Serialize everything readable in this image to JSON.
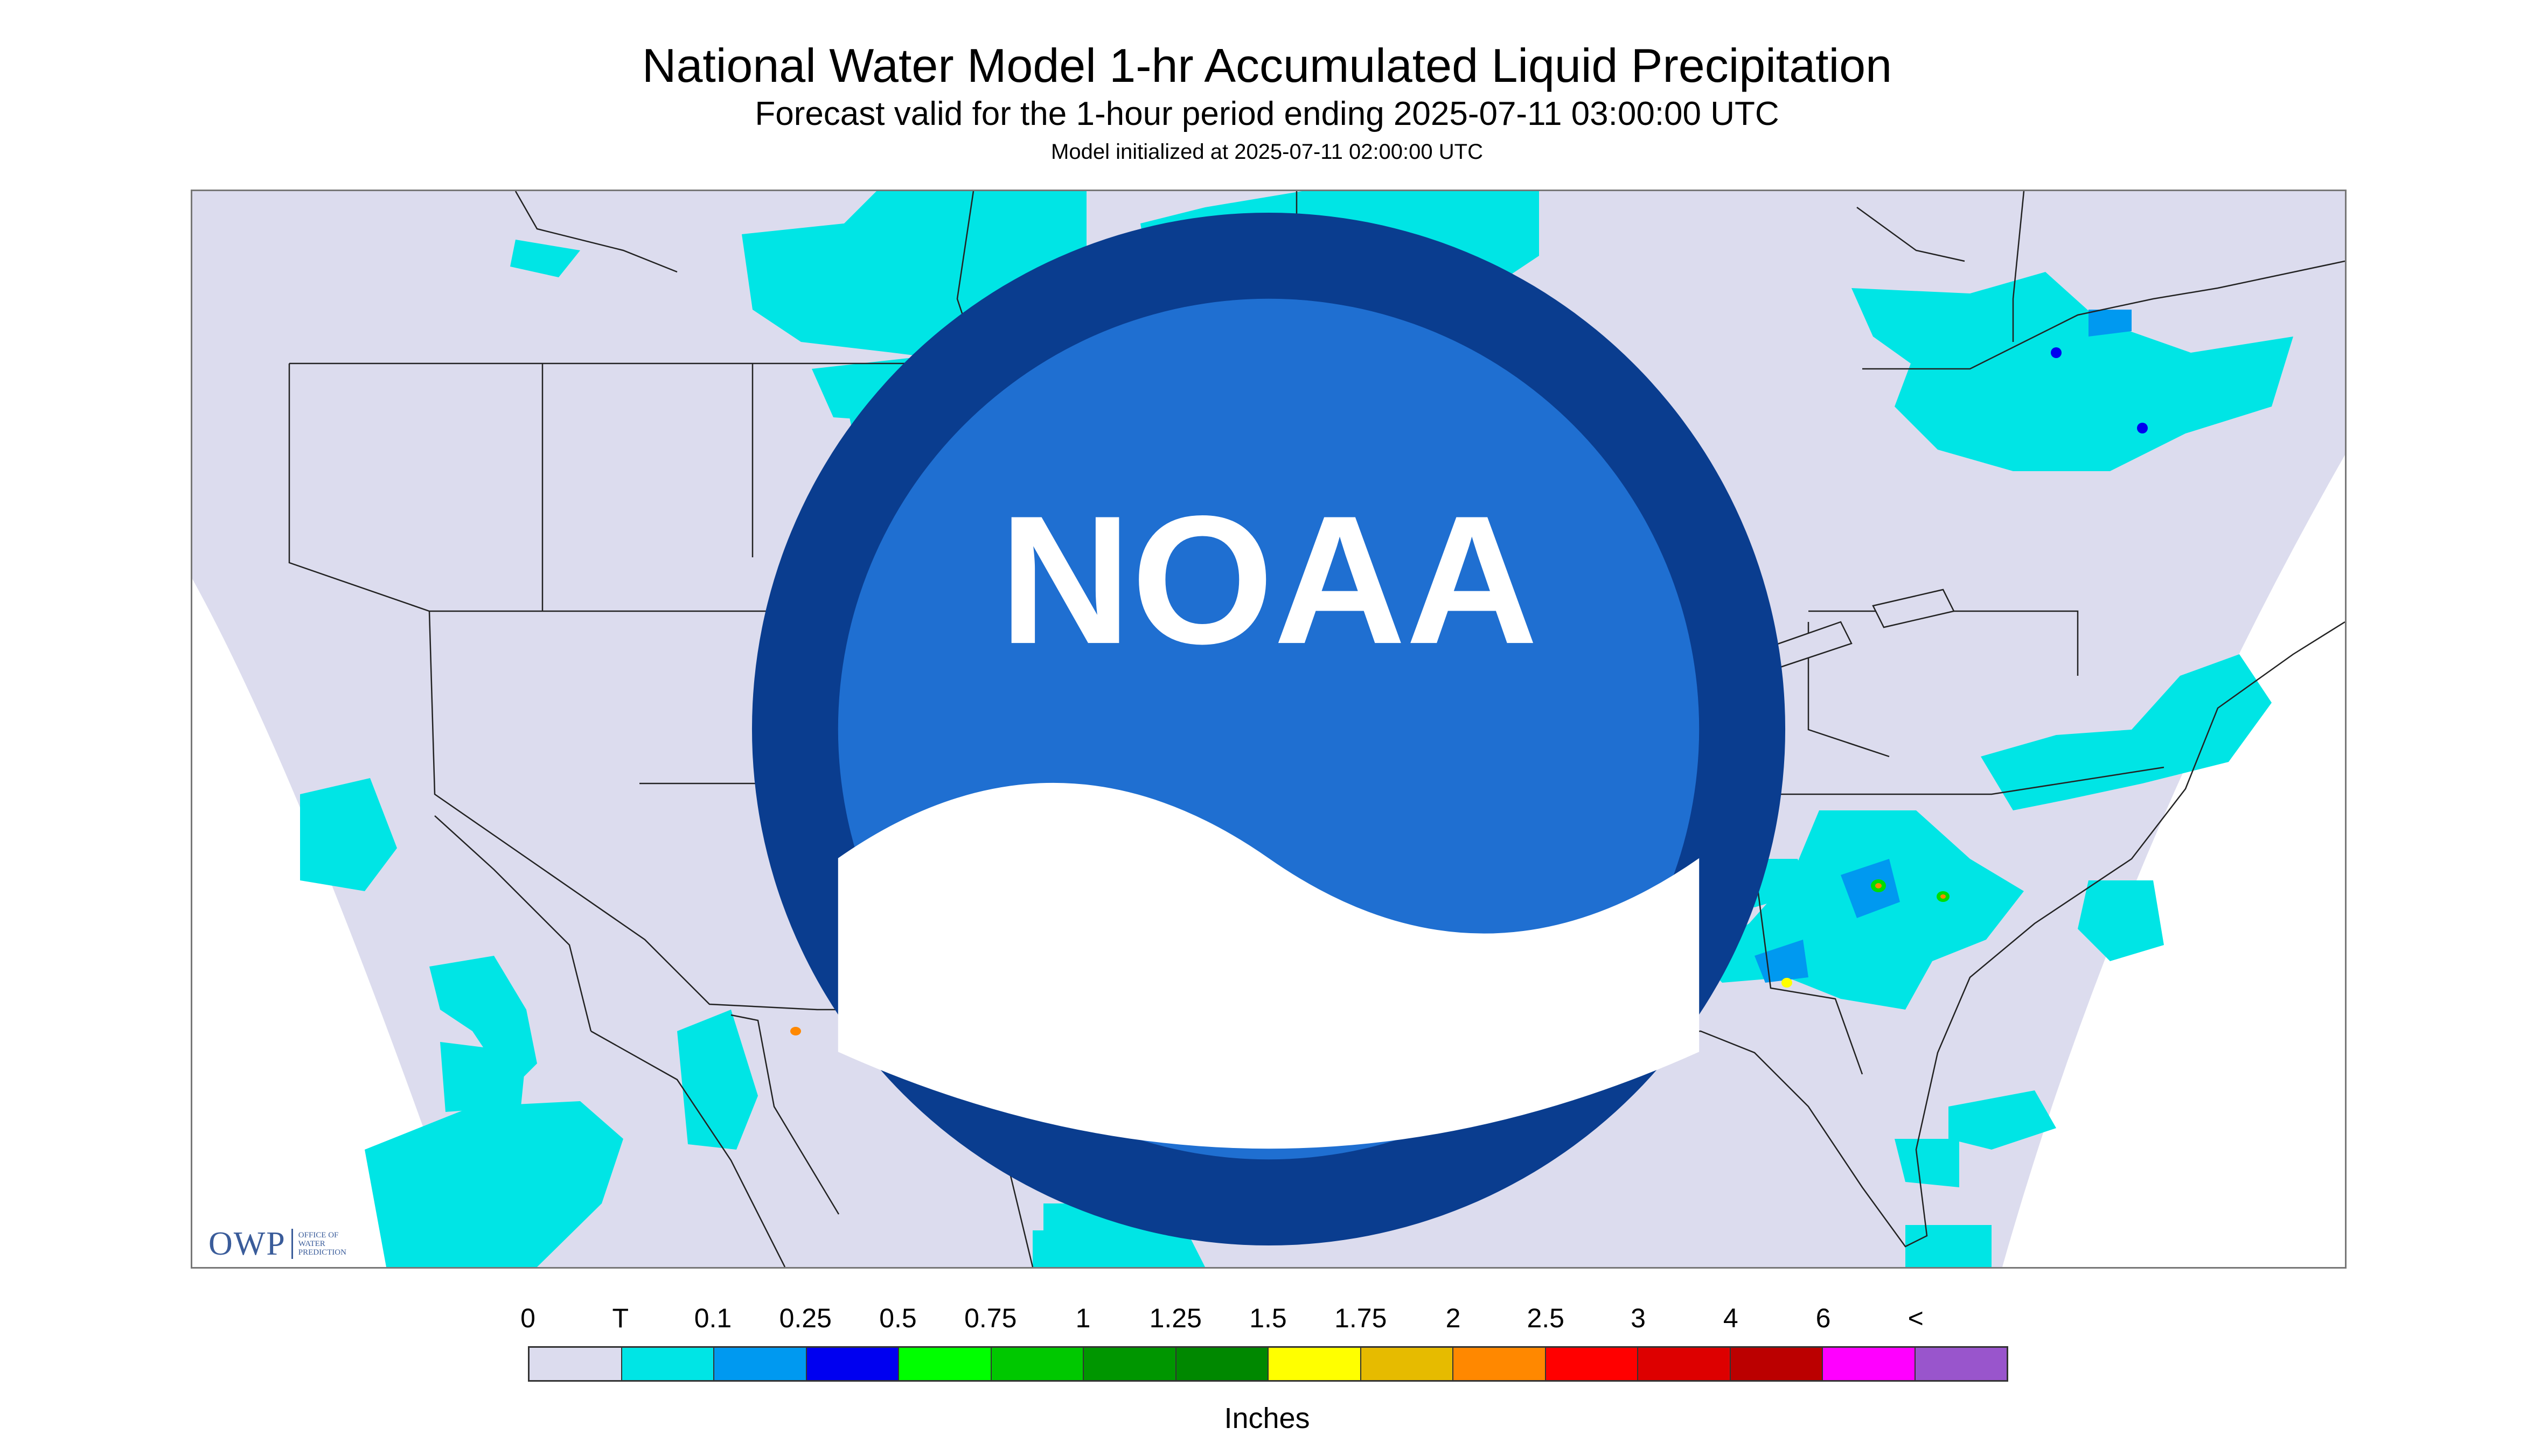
{
  "title": "National Water Model 1-hr Accumulated Liquid Precipitation",
  "subtitle": "Forecast valid for the 1-hour period ending 2025-07-11 03:00:00 UTC",
  "initialized": "Model initialized at 2025-07-11 02:00:00 UTC",
  "colors": {
    "map_domain": "#dcdcee",
    "outside_domain": "#ffffff",
    "boundary_lines": "#222222",
    "trace": "#00e5e5",
    "light": "#0099f0",
    "moderate": "#0000f0",
    "green": "#00dd00",
    "yellow": "#ffff00",
    "orange": "#ff8800"
  },
  "owp_logo": {
    "name": "OWP",
    "caption": "OFFICE OF\nWATER\nPREDICTION"
  },
  "noaa_logo": {
    "text": "NOAA"
  },
  "legend": {
    "labels": [
      "0",
      "T",
      "0.1",
      "0.25",
      "0.5",
      "0.75",
      "1",
      "1.25",
      "1.5",
      "1.75",
      "2",
      "2.5",
      "3",
      "4",
      "6",
      "<"
    ],
    "colors": [
      "#dcdcee",
      "#00e5e5",
      "#0099f0",
      "#0000f0",
      "#00ff00",
      "#00c800",
      "#009600",
      "#008800",
      "#ffff00",
      "#e6bb00",
      "#ff8800",
      "#ff0000",
      "#dd0000",
      "#bb0000",
      "#ff00ff",
      "#9955cc"
    ],
    "units": "Inches"
  }
}
